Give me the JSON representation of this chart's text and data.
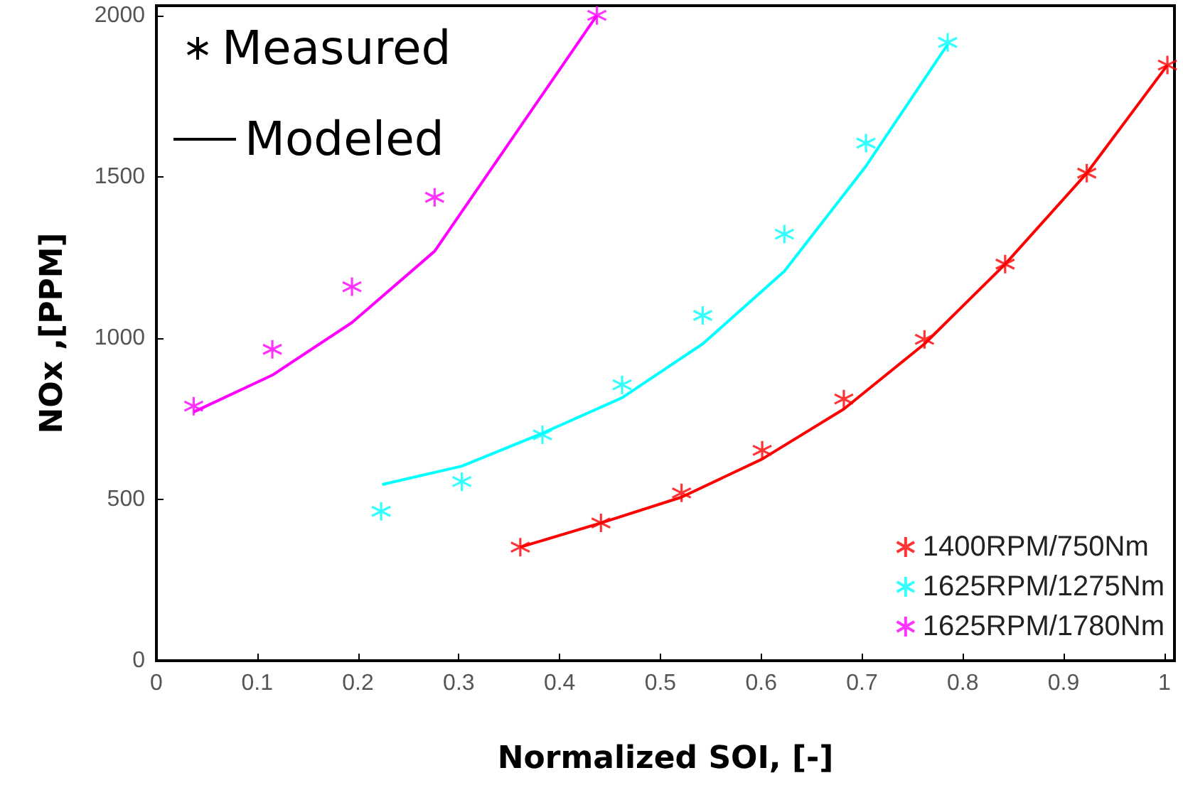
{
  "chart_data": {
    "type": "scatter",
    "xlabel": "Normalized SOI, [-]",
    "ylabel": "NOx ,[PPM]",
    "xlim": [
      0,
      1.01
    ],
    "ylim": [
      0,
      2030
    ],
    "xticks": [
      0,
      0.1,
      0.2,
      0.3,
      0.4,
      0.5,
      0.6,
      0.7,
      0.8,
      0.9,
      1
    ],
    "yticks": [
      0,
      500,
      1000,
      1500,
      2000
    ],
    "grid": false,
    "legend": "bottom right",
    "marker": "cross",
    "annotations": [
      "Measured",
      "Modeled"
    ],
    "series": [
      {
        "name": "1400RPM/750Nm",
        "color": "#ff0000",
        "x": [
          0.361,
          0.441,
          0.521,
          0.601,
          0.682,
          0.762,
          0.842,
          0.923,
          1.003
        ],
        "values": [
          352,
          427,
          520,
          652,
          811,
          996,
          1229,
          1511,
          1846
        ]
      },
      {
        "name": "1625RPM/1275Nm",
        "color": "#00ffff",
        "x": [
          0.223,
          0.303,
          0.383,
          0.462,
          0.542,
          0.623,
          0.704,
          0.785
        ],
        "values": [
          463,
          555,
          700,
          855,
          1070,
          1322,
          1604,
          1916
        ]
      },
      {
        "name": "1625RPM/1780Nm",
        "color": "#ff00ff",
        "x": [
          0.037,
          0.115,
          0.194,
          0.276,
          0.437
        ],
        "values": [
          789,
          965,
          1159,
          1436,
          2000
        ]
      },
      {
        "type": "line",
        "marker": "none",
        "color": "#ff0000",
        "x": [
          0.361,
          0.441,
          0.521,
          0.601,
          0.682,
          0.762,
          0.842,
          0.923,
          1.003
        ],
        "values": [
          352,
          427,
          507,
          625,
          780,
          982,
          1229,
          1511,
          1846
        ]
      },
      {
        "type": "line",
        "marker": "none",
        "color": "#00ffff",
        "x": [
          0.224,
          0.303,
          0.383,
          0.462,
          0.542,
          0.623,
          0.704,
          0.785
        ],
        "values": [
          546,
          603,
          705,
          815,
          982,
          1207,
          1533,
          1910
        ]
      },
      {
        "type": "line",
        "marker": "none",
        "color": "#ff00ff",
        "x": [
          0.037,
          0.115,
          0.194,
          0.276,
          0.437
        ],
        "values": [
          771,
          885,
          1048,
          1269,
          2000
        ]
      }
    ]
  }
}
